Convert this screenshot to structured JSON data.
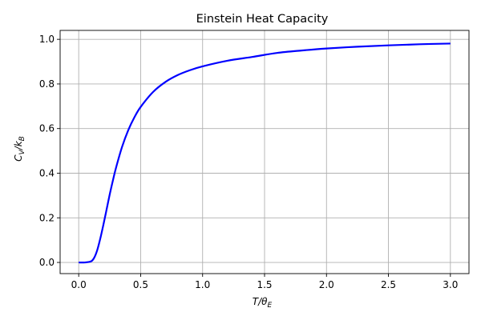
{
  "chart_data": {
    "type": "line",
    "title": "Einstein Heat Capacity",
    "xlabel": {
      "main": "T/θ",
      "sub": "E"
    },
    "ylabel": {
      "main": "C",
      "sub1": "V",
      "mid": "/k",
      "sub2": "B"
    },
    "xlim": [
      -0.15,
      3.15
    ],
    "ylim": [
      -0.05,
      1.04
    ],
    "x_ticks": [
      0.0,
      0.5,
      1.0,
      1.5,
      2.0,
      2.5,
      3.0
    ],
    "x_tick_labels": [
      "0.0",
      "0.5",
      "1.0",
      "1.5",
      "2.0",
      "2.5",
      "3.0"
    ],
    "y_ticks": [
      0.0,
      0.2,
      0.4,
      0.6,
      0.8,
      1.0
    ],
    "y_tick_labels": [
      "0.0",
      "0.2",
      "0.4",
      "0.6",
      "0.8",
      "1.0"
    ],
    "grid": true,
    "series": [
      {
        "color": "#0000ff",
        "x": [
          0.0,
          0.05,
          0.1,
          0.125,
          0.15,
          0.175,
          0.2,
          0.225,
          0.25,
          0.275,
          0.3,
          0.35,
          0.4,
          0.45,
          0.5,
          0.6,
          0.7,
          0.8,
          0.9,
          1.0,
          1.2,
          1.4,
          1.6,
          1.8,
          2.0,
          2.25,
          2.5,
          2.75,
          3.0
        ],
        "y": [
          0.0,
          0.0,
          0.005,
          0.021,
          0.056,
          0.109,
          0.171,
          0.237,
          0.304,
          0.365,
          0.422,
          0.518,
          0.593,
          0.651,
          0.697,
          0.764,
          0.809,
          0.84,
          0.862,
          0.879,
          0.904,
          0.921,
          0.939,
          0.95,
          0.959,
          0.967,
          0.973,
          0.978,
          0.981
        ]
      }
    ]
  }
}
